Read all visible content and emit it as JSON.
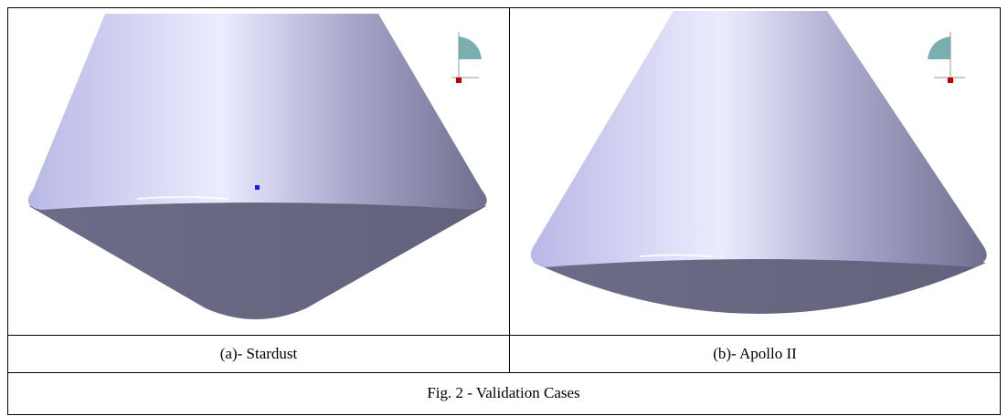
{
  "figure": {
    "panels": [
      {
        "label": "(a)- Stardust"
      },
      {
        "label": "(b)- Apollo II"
      }
    ],
    "caption": "Fig. 2 - Validation Cases"
  }
}
